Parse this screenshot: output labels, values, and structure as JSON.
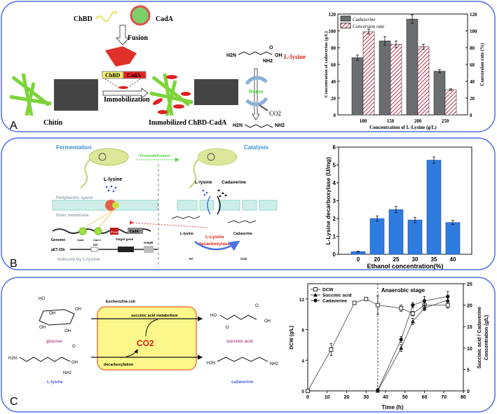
{
  "colors": {
    "panel_border": "#4f6ff0",
    "cadaverine_bar": "#6b6e70",
    "conversion_hatch": "#c0304a",
    "ethanol_bar": "#2f7ce0",
    "fermentation_title": "#3a8fd0",
    "permeabilization": "#4cd437",
    "red_label": "#e0201a",
    "glucose_label": "#b0508a",
    "lysine_label": "#4a5ee0",
    "box_fill": "#fbf78a",
    "box_border": "#f07a3a"
  },
  "panelA": {
    "label": "A",
    "chbd": "ChBD",
    "cada": "CadA",
    "fusion": "Fusion",
    "box_chbd": "ChBD",
    "box_cada": "CadA",
    "immobilization": "Immobilization",
    "chitin": "Chitin",
    "immobilized": "Immobilized ChBD-CadA",
    "lysine_name": "L-lysine",
    "reuse": "Reuse",
    "co2": "CO2",
    "h2n": "H2N",
    "nh2": "NH2",
    "oh": "OH",
    "o": "O"
  },
  "panelB": {
    "label": "B",
    "fermentation": "Fermentation",
    "catalysis": "Catalysis",
    "permeabilization": "Permeabilization",
    "lysine_top": "L-lysine",
    "periplasmic": "Periplasmic space",
    "inner_membrane": "Inner membrane",
    "genome": "Genome",
    "cad1": "Cad1",
    "cad2": "Cad 2",
    "pcad": "Pcad",
    "cada": "CadA",
    "target_gene": "Target gene",
    "pet": "pET-22b",
    "ori": "Ori",
    "ampr": "AmpR",
    "induced": "Induced by L-lysine",
    "cat_lysine": "L-lysine",
    "cat_cadaverine": "Cadaverine",
    "struct_lysine": "L-lysine",
    "struct_cadaverine": "Cadaverine",
    "enzyme_line1": "L-Lysine",
    "enzyme_line2": "decarboxylase",
    "h": "H+",
    "co2": "CO2"
  },
  "panelC": {
    "label": "C",
    "ecoli": "Escherichia coli",
    "succinic_metabolism": "succinic acid metabolism",
    "decarboxylation": "decarboxylation",
    "co2": "CO2",
    "glucose": "glucose",
    "lysine": "L-lysine",
    "succinic_acid": "succinic acid",
    "cadaverine": "cadaverine",
    "ho": "HO",
    "oh": "OH",
    "h2n": "H2N",
    "nh2": "NH2",
    "o": "O"
  },
  "chart_data": [
    {
      "type": "bar",
      "categories": [
        "100",
        "150",
        "200",
        "250"
      ],
      "xlabel": "Concentration of L-Lysine (g/L)",
      "ylabel": "Concentration of cadaverine (g/L)",
      "y2label": "Conversion rate (%)",
      "ylim": [
        0,
        120
      ],
      "y2lim": [
        0,
        120
      ],
      "y_ticks": [
        "0",
        "20",
        "40",
        "60",
        "80",
        "100",
        "120"
      ],
      "legend": "top-left",
      "series": [
        {
          "name": "Cadaverine",
          "values": [
            68,
            88,
            114,
            52
          ],
          "errors": [
            3,
            5,
            5,
            2
          ],
          "color": "#6b6e70",
          "axis": "left"
        },
        {
          "name": "Conversion rate",
          "values": [
            99,
            84,
            81,
            30
          ],
          "errors": [
            3,
            4,
            3,
            1
          ],
          "color": "#c0304a",
          "pattern": "hatched",
          "axis": "right"
        }
      ]
    },
    {
      "type": "bar",
      "categories": [
        "0",
        "20",
        "25",
        "30",
        "35",
        "40"
      ],
      "xlabel": "Ethanol concentration(%)",
      "ylabel": "L-Lysine decarboxylase (U/mg)",
      "ylim": [
        0,
        6
      ],
      "y_ticks": [
        "0",
        "1",
        "2",
        "3",
        "4",
        "5",
        "6"
      ],
      "series": [
        {
          "values": [
            0.15,
            2.0,
            2.5,
            1.92,
            5.27,
            1.78
          ],
          "errors": [
            0.03,
            0.15,
            0.18,
            0.15,
            0.18,
            0.12
          ],
          "color": "#2f7ce0"
        }
      ]
    },
    {
      "type": "line",
      "xlabel": "Time (h)",
      "ylabel": "DCW (g/L)",
      "y2label_line1": "Succinic acid / Cadaverine",
      "y2label_line2": "Concentration (g/L)",
      "xlim": [
        0,
        80
      ],
      "ylim": [
        0,
        14
      ],
      "y2lim": [
        0,
        25
      ],
      "x_ticks": [
        "0",
        "10",
        "20",
        "30",
        "40",
        "50",
        "60",
        "70",
        "80"
      ],
      "y_ticks": [
        "0",
        "4",
        "8",
        "12"
      ],
      "y2_ticks": [
        "0",
        "5",
        "10",
        "15",
        "20",
        "25"
      ],
      "annotation": "Anaerobic stage",
      "annotation_x": 36,
      "legend": "top-left",
      "series": [
        {
          "name": "DCW",
          "marker": "open-square",
          "axis": "left",
          "x": [
            0,
            12,
            24,
            30,
            36,
            48,
            54,
            60,
            72
          ],
          "y": [
            0,
            5.4,
            11.5,
            12,
            11.2,
            10.8,
            10.1,
            11.2,
            11.2
          ],
          "errors": [
            0,
            0.8,
            0,
            0,
            1.2,
            0.4,
            0.3,
            0.4,
            0.4
          ]
        },
        {
          "name": "Succinic acid",
          "marker": "filled-triangle",
          "axis": "right",
          "x": [
            36,
            48,
            54,
            60,
            72
          ],
          "y": [
            0,
            10,
            16.2,
            19.3,
            21.2
          ],
          "errors": [
            0,
            0.8,
            0.7,
            0.6,
            0.8
          ]
        },
        {
          "name": "Cadaverine",
          "marker": "filled-circle",
          "axis": "right",
          "x": [
            36,
            48,
            54,
            60,
            72
          ],
          "y": [
            0.2,
            12,
            20,
            21,
            22
          ],
          "errors": [
            0,
            0.7,
            0.6,
            1.0,
            1.2
          ]
        }
      ]
    }
  ]
}
